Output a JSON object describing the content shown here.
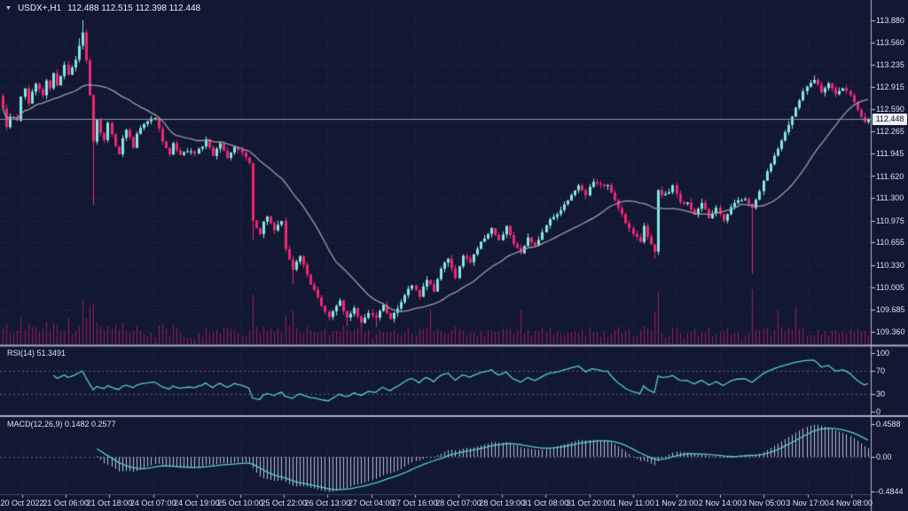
{
  "header": {
    "symbol": "USDX+,H1",
    "ohlc": "112.488 112.515 112.398 112.448",
    "dropdown_icon": "▼"
  },
  "panels": {
    "rsi": {
      "label": "RSI(14) 51.3491",
      "ticks": [
        "100",
        "70",
        "30",
        "0"
      ]
    },
    "macd": {
      "label": "MACD(12,26,9) 0.1482 0.2577",
      "ticks": [
        "0.4588",
        "0.00",
        "-0.4844"
      ]
    }
  },
  "colors": {
    "background": "#121732",
    "grid": "#2c3256",
    "level": "#5a6088",
    "bull": "#87e8e0",
    "bear": "#f1286f",
    "ma": "#9aa0ac",
    "volume": "#9d1d50",
    "indicator_line": "#57cdd3",
    "macd_hist": "#b9bfd6",
    "price_line": "#9095a6",
    "separator": "#a9adbd",
    "axis_border": "#b5b9c8",
    "axis_tick": "#c8ccda",
    "bottom_border": "#3c4268",
    "axis_text": "#dfe3ef",
    "price_box_bg": "#eef0f4",
    "price_box_text": "#10142c"
  },
  "chart_data": {
    "type": "candlestick",
    "symbol": "USDX+",
    "timeframe": "H1",
    "ohlc_display": {
      "open": "112.488",
      "high": "112.515",
      "low": "112.398",
      "close": "112.448"
    },
    "price_box": "112.448",
    "last_price": 112.448,
    "bars": 240,
    "seed": 97531,
    "noise": 0.04,
    "wick": 0.06,
    "first_open_offset": 0.18,
    "ma_period": 24,
    "volume_impulse": 60,
    "volume_max": 62,
    "y_ticks": [
      "113.880",
      "113.560",
      "113.235",
      "112.915",
      "112.590",
      "112.265",
      "111.945",
      "111.620",
      "111.300",
      "110.975",
      "110.655",
      "110.330",
      "110.005",
      "109.685",
      "109.360"
    ],
    "x_labels": [
      "20 Oct 2022",
      "21 Oct 06:00",
      "21 Oct 18:00",
      "24 Oct 07:00",
      "24 Oct 19:00",
      "25 Oct 10:00",
      "25 Oct 22:00",
      "26 Oct 13:00",
      "27 Oct 04:00",
      "27 Oct 16:00",
      "28 Oct 07:00",
      "28 Oct 19:00",
      "31 Oct 08:00",
      "31 Oct 20:00",
      "1 Nov 11:00",
      "1 Nov 23:00",
      "2 Nov 14:00",
      "3 Nov 05:00",
      "3 Nov 17:00",
      "4 Nov 08:00"
    ],
    "close_keypoints": [
      [
        0,
        112.6
      ],
      [
        1,
        112.32
      ],
      [
        2,
        112.5
      ],
      [
        4,
        112.42
      ],
      [
        5,
        112.78
      ],
      [
        6,
        112.9
      ],
      [
        7,
        112.68
      ],
      [
        8,
        112.85
      ],
      [
        9,
        112.96
      ],
      [
        11,
        112.8
      ],
      [
        12,
        113.02
      ],
      [
        13,
        112.88
      ],
      [
        14,
        113.1
      ],
      [
        15,
        112.95
      ],
      [
        17,
        113.22
      ],
      [
        18,
        113.08
      ],
      [
        19,
        113.18
      ],
      [
        20,
        113.32
      ],
      [
        21,
        113.5
      ],
      [
        22,
        113.7
      ],
      [
        23,
        113.3
      ],
      [
        24,
        112.8
      ],
      [
        25,
        112.12
      ],
      [
        26,
        112.42
      ],
      [
        27,
        112.25
      ],
      [
        28,
        112.15
      ],
      [
        29,
        112.38
      ],
      [
        31,
        112.05
      ],
      [
        32,
        111.92
      ],
      [
        33,
        112.18
      ],
      [
        34,
        112.3
      ],
      [
        36,
        112.05
      ],
      [
        37,
        112.22
      ],
      [
        38,
        112.32
      ],
      [
        40,
        112.4
      ],
      [
        42,
        112.48
      ],
      [
        44,
        112.12
      ],
      [
        46,
        111.95
      ],
      [
        47,
        112.08
      ],
      [
        49,
        111.92
      ],
      [
        51,
        112.0
      ],
      [
        53,
        111.95
      ],
      [
        55,
        112.05
      ],
      [
        56,
        112.15
      ],
      [
        58,
        111.92
      ],
      [
        60,
        112.08
      ],
      [
        62,
        111.88
      ],
      [
        64,
        112.04
      ],
      [
        66,
        111.98
      ],
      [
        68,
        111.82
      ],
      [
        69,
        110.98
      ],
      [
        70,
        110.85
      ],
      [
        71,
        110.78
      ],
      [
        72,
        110.95
      ],
      [
        73,
        111.05
      ],
      [
        75,
        110.82
      ],
      [
        76,
        110.9
      ],
      [
        77,
        110.96
      ],
      [
        78,
        110.55
      ],
      [
        79,
        110.42
      ],
      [
        80,
        110.25
      ],
      [
        82,
        110.48
      ],
      [
        84,
        110.18
      ],
      [
        86,
        109.95
      ],
      [
        88,
        109.75
      ],
      [
        90,
        109.58
      ],
      [
        92,
        109.72
      ],
      [
        93,
        109.8
      ],
      [
        95,
        109.55
      ],
      [
        97,
        109.7
      ],
      [
        99,
        109.48
      ],
      [
        101,
        109.62
      ],
      [
        103,
        109.58
      ],
      [
        105,
        109.75
      ],
      [
        107,
        109.55
      ],
      [
        109,
        109.7
      ],
      [
        111,
        109.9
      ],
      [
        113,
        110.05
      ],
      [
        115,
        109.88
      ],
      [
        117,
        110.12
      ],
      [
        119,
        109.95
      ],
      [
        121,
        110.28
      ],
      [
        123,
        110.42
      ],
      [
        125,
        110.15
      ],
      [
        127,
        110.48
      ],
      [
        129,
        110.35
      ],
      [
        131,
        110.58
      ],
      [
        133,
        110.72
      ],
      [
        135,
        110.85
      ],
      [
        137,
        110.7
      ],
      [
        139,
        110.88
      ],
      [
        141,
        110.62
      ],
      [
        143,
        110.5
      ],
      [
        145,
        110.72
      ],
      [
        147,
        110.6
      ],
      [
        149,
        110.82
      ],
      [
        151,
        111.0
      ],
      [
        153,
        111.05
      ],
      [
        155,
        111.2
      ],
      [
        157,
        111.35
      ],
      [
        159,
        111.48
      ],
      [
        161,
        111.35
      ],
      [
        163,
        111.55
      ],
      [
        165,
        111.5
      ],
      [
        167,
        111.48
      ],
      [
        169,
        111.28
      ],
      [
        171,
        111.05
      ],
      [
        173,
        110.85
      ],
      [
        175,
        110.72
      ],
      [
        176,
        110.65
      ],
      [
        177,
        110.88
      ],
      [
        179,
        110.62
      ],
      [
        180,
        110.52
      ],
      [
        181,
        111.42
      ],
      [
        182,
        111.35
      ],
      [
        184,
        111.4
      ],
      [
        185,
        111.48
      ],
      [
        187,
        111.25
      ],
      [
        189,
        111.22
      ],
      [
        191,
        111.05
      ],
      [
        193,
        111.25
      ],
      [
        195,
        111.02
      ],
      [
        197,
        111.15
      ],
      [
        199,
        110.98
      ],
      [
        201,
        111.15
      ],
      [
        203,
        111.28
      ],
      [
        205,
        111.3
      ],
      [
        207,
        111.15
      ],
      [
        209,
        111.42
      ],
      [
        211,
        111.68
      ],
      [
        213,
        111.92
      ],
      [
        215,
        112.15
      ],
      [
        217,
        112.38
      ],
      [
        219,
        112.62
      ],
      [
        221,
        112.85
      ],
      [
        223,
        112.98
      ],
      [
        224,
        113.02
      ],
      [
        226,
        112.85
      ],
      [
        228,
        112.95
      ],
      [
        230,
        112.82
      ],
      [
        232,
        112.9
      ],
      [
        234,
        112.78
      ],
      [
        236,
        112.58
      ],
      [
        238,
        112.42
      ],
      [
        239,
        112.448
      ]
    ],
    "special_wicks": [
      [
        21,
        "h",
        113.62
      ],
      [
        22,
        "h",
        113.88
      ],
      [
        25,
        "l",
        111.2
      ],
      [
        69,
        "l",
        110.7
      ],
      [
        80,
        "l",
        110.05
      ],
      [
        95,
        "l",
        109.44
      ],
      [
        99,
        "l",
        109.42
      ],
      [
        103,
        "l",
        109.43
      ],
      [
        180,
        "l",
        110.42
      ],
      [
        207,
        "l",
        110.2
      ],
      [
        224,
        "h",
        113.08
      ]
    ],
    "volume_spikes": [
      [
        18,
        30
      ],
      [
        22,
        50
      ],
      [
        24,
        44
      ],
      [
        25,
        46
      ],
      [
        69,
        56
      ],
      [
        80,
        38
      ],
      [
        118,
        40
      ],
      [
        143,
        38
      ],
      [
        180,
        36
      ],
      [
        207,
        62
      ],
      [
        214,
        38
      ],
      [
        219,
        42
      ]
    ],
    "overlays": [
      {
        "name": "moving-average",
        "period": 24
      }
    ],
    "indicators": [
      {
        "name": "RSI",
        "period": 14,
        "value": 51.3491,
        "levels": [
          30,
          70
        ],
        "range": [
          0,
          100
        ]
      },
      {
        "name": "MACD",
        "fast": 12,
        "slow": 26,
        "signal": 9,
        "values": [
          0.1482,
          0.2577
        ],
        "axis": [
          0.4588,
          0.0,
          -0.4844
        ]
      }
    ]
  }
}
